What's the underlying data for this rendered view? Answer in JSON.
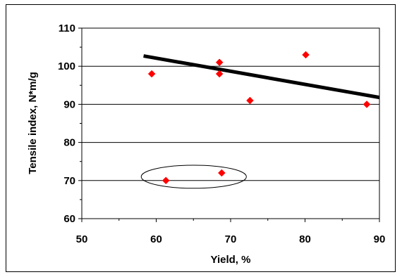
{
  "chart_data": {
    "type": "scatter",
    "title": "",
    "xlabel": "Yield, %",
    "ylabel": "Tensile index, N*m/g",
    "xlim": [
      50,
      90
    ],
    "ylim": [
      60,
      110
    ],
    "x_ticks": [
      50,
      60,
      70,
      80,
      90
    ],
    "y_ticks": [
      60,
      70,
      80,
      90,
      100,
      110
    ],
    "grid": "horizontal",
    "legend": "none",
    "series": [
      {
        "points": [
          {
            "x": 59.4,
            "y": 98
          },
          {
            "x": 61.3,
            "y": 70
          },
          {
            "x": 68.5,
            "y": 101
          },
          {
            "x": 68.5,
            "y": 98
          },
          {
            "x": 68.8,
            "y": 72
          },
          {
            "x": 72.6,
            "y": 91
          },
          {
            "x": 80.1,
            "y": 103
          },
          {
            "x": 88.3,
            "y": 90
          }
        ],
        "color": "#ff0000",
        "marker": "diamond"
      }
    ],
    "trendline": {
      "x": [
        58.3,
        90
      ],
      "y": [
        102.7,
        91.8
      ],
      "color": "#000000"
    },
    "annotation": {
      "type": "ellipse",
      "encloses_points": [
        {
          "x": 61.3,
          "y": 70
        },
        {
          "x": 68.8,
          "y": 72
        }
      ],
      "color": "#000000"
    }
  }
}
